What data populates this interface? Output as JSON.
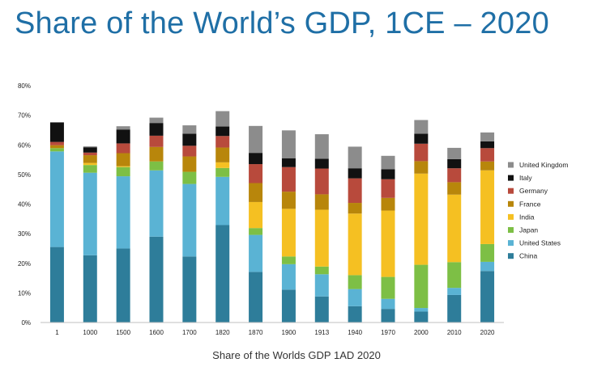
{
  "slide": {
    "title": "Share of the World’s GDP, 1CE – 2020",
    "caption": "Share of the Worlds GDP 1AD 2020"
  },
  "chart_data": {
    "type": "bar",
    "stacked": true,
    "categories": [
      "1",
      "1000",
      "1500",
      "1600",
      "1700",
      "1820",
      "1870",
      "1900",
      "1913",
      "1940",
      "1970",
      "2000",
      "2010",
      "2020"
    ],
    "ylim": [
      0,
      80
    ],
    "yticks": [
      "0%",
      "10%",
      "20%",
      "30%",
      "40%",
      "50%",
      "60%",
      "70%",
      "80%"
    ],
    "grid": false,
    "legend_position": "right",
    "series": [
      {
        "name": "China",
        "color": "#2e7d9a",
        "values": [
          25.5,
          22.7,
          25.0,
          29.0,
          22.3,
          32.9,
          17.1,
          11.1,
          8.8,
          5.5,
          4.6,
          3.7,
          9.3,
          17.4
        ]
      },
      {
        "name": "United States",
        "color": "#5ab3d4",
        "values": [
          32.3,
          27.9,
          24.4,
          22.4,
          24.5,
          16.3,
          12.5,
          8.6,
          7.5,
          5.8,
          3.4,
          1.2,
          2.4,
          3.1
        ]
      },
      {
        "name": "Japan",
        "color": "#7dbf45",
        "values": [
          1.1,
          2.6,
          3.1,
          3.0,
          4.1,
          3.0,
          2.3,
          2.6,
          2.6,
          4.7,
          7.4,
          14.6,
          8.7,
          6.0
        ]
      },
      {
        "name": "India",
        "color": "#f5c022",
        "values": [
          0.0,
          0.7,
          0.3,
          0.0,
          0.0,
          1.9,
          8.8,
          16.1,
          19.2,
          20.8,
          22.4,
          30.8,
          22.8,
          24.9
        ]
      },
      {
        "name": "France",
        "color": "#b8860b",
        "values": [
          1.0,
          2.6,
          4.4,
          4.9,
          5.2,
          5.0,
          6.4,
          5.8,
          5.2,
          3.6,
          4.3,
          4.2,
          4.2,
          3.0
        ]
      },
      {
        "name": "Germany",
        "color": "#b84a3c",
        "values": [
          1.1,
          0.9,
          3.3,
          3.8,
          3.6,
          3.9,
          6.4,
          8.3,
          8.7,
          8.3,
          6.3,
          5.9,
          4.7,
          4.5
        ]
      },
      {
        "name": "Italy",
        "color": "#111111",
        "values": [
          6.6,
          1.8,
          4.7,
          4.3,
          4.1,
          3.2,
          3.8,
          3.0,
          3.3,
          3.4,
          3.4,
          3.4,
          3.1,
          2.3
        ]
      },
      {
        "name": "United Kingdom",
        "color": "#8c8c8c",
        "values": [
          0.0,
          0.3,
          1.1,
          1.8,
          2.8,
          5.2,
          9.1,
          9.4,
          8.3,
          7.3,
          4.5,
          4.6,
          3.8,
          3.0
        ]
      }
    ]
  }
}
